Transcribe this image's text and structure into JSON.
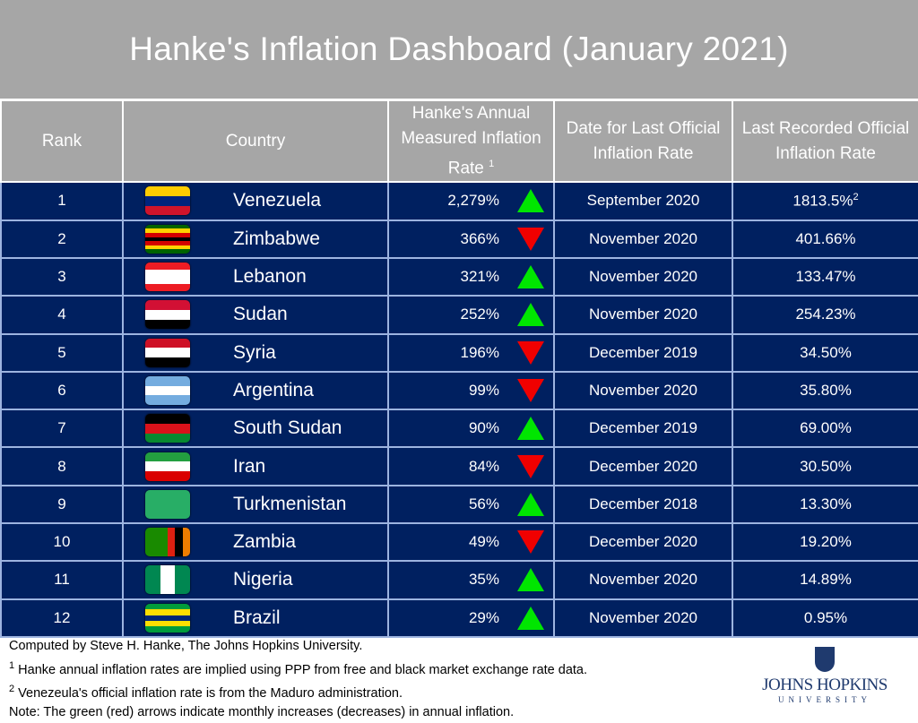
{
  "title": "Hanke's Inflation Dashboard (January 2021)",
  "headers": {
    "rank": "Rank",
    "country": "Country",
    "hanke_a": "Hanke's Annual",
    "hanke_b": "Measured Inflation",
    "hanke_c": "Rate",
    "hanke_sup": "1",
    "date_a": "Date for Last Official",
    "date_b": "Inflation Rate",
    "official_a": "Last Recorded Official",
    "official_b": "Inflation Rate"
  },
  "colors": {
    "title_bg": "#a6a6a6",
    "row_bg": "#002060",
    "up_arrow": "#00e600",
    "down_arrow": "#f00000"
  },
  "rows": [
    {
      "rank": "1",
      "country": "Venezuela",
      "hanke": "2,279%",
      "trend": "up",
      "date": "September 2020",
      "official": "1813.5%",
      "official_sup": "2",
      "flag": {
        "dir": "h",
        "colors": [
          "#ffcc00",
          "#00247d",
          "#cf142b"
        ]
      }
    },
    {
      "rank": "2",
      "country": "Zimbabwe",
      "hanke": "366%",
      "trend": "down",
      "date": "November 2020",
      "official": "401.66%",
      "flag": {
        "dir": "h",
        "colors": [
          "#006400",
          "#ffd200",
          "#d40000",
          "#000000",
          "#d40000",
          "#ffd200",
          "#006400"
        ]
      }
    },
    {
      "rank": "3",
      "country": "Lebanon",
      "hanke": "321%",
      "trend": "up",
      "date": "November 2020",
      "official": "133.47%",
      "flag": {
        "dir": "h",
        "colors": [
          "#ed1c24",
          "#ffffff",
          "#ffffff",
          "#ed1c24"
        ]
      }
    },
    {
      "rank": "4",
      "country": "Sudan",
      "hanke": "252%",
      "trend": "up",
      "date": "November 2020",
      "official": "254.23%",
      "flag": {
        "dir": "h",
        "colors": [
          "#d21034",
          "#ffffff",
          "#000000"
        ]
      }
    },
    {
      "rank": "5",
      "country": "Syria",
      "hanke": "196%",
      "trend": "down",
      "date": "December 2019",
      "official": "34.50%",
      "flag": {
        "dir": "h",
        "colors": [
          "#ce1126",
          "#ffffff",
          "#000000"
        ]
      }
    },
    {
      "rank": "6",
      "country": "Argentina",
      "hanke": "99%",
      "trend": "down",
      "date": "November 2020",
      "official": "35.80%",
      "flag": {
        "dir": "h",
        "colors": [
          "#74acdf",
          "#ffffff",
          "#74acdf"
        ]
      }
    },
    {
      "rank": "7",
      "country": "South Sudan",
      "hanke": "90%",
      "trend": "up",
      "date": "December 2019",
      "official": "69.00%",
      "flag": {
        "dir": "h",
        "colors": [
          "#000000",
          "#da121a",
          "#078930"
        ]
      }
    },
    {
      "rank": "8",
      "country": "Iran",
      "hanke": "84%",
      "trend": "down",
      "date": "December 2020",
      "official": "30.50%",
      "flag": {
        "dir": "h",
        "colors": [
          "#239f40",
          "#ffffff",
          "#da0000"
        ]
      }
    },
    {
      "rank": "9",
      "country": "Turkmenistan",
      "hanke": "56%",
      "trend": "up",
      "date": "December 2018",
      "official": "13.30%",
      "flag": {
        "dir": "h",
        "colors": [
          "#28ae66"
        ]
      }
    },
    {
      "rank": "10",
      "country": "Zambia",
      "hanke": "49%",
      "trend": "down",
      "date": "December 2020",
      "official": "19.20%",
      "flag": {
        "dir": "v",
        "colors": [
          "#198a00",
          "#198a00",
          "#198a00",
          "#de2010",
          "#000000",
          "#ef7d00"
        ]
      }
    },
    {
      "rank": "11",
      "country": "Nigeria",
      "hanke": "35%",
      "trend": "up",
      "date": "November 2020",
      "official": "14.89%",
      "flag": {
        "dir": "v",
        "colors": [
          "#008751",
          "#ffffff",
          "#008751"
        ]
      }
    },
    {
      "rank": "12",
      "country": "Brazil",
      "hanke": "29%",
      "trend": "up",
      "date": "November 2020",
      "official": "0.95%",
      "flag": {
        "dir": "h",
        "colors": [
          "#009c3b",
          "#ffdf00",
          "#002776",
          "#ffdf00",
          "#009c3b"
        ]
      }
    }
  ],
  "notes": {
    "line1": "Computed by Steve H. Hanke, The Johns Hopkins University.",
    "line2_sup": "1",
    "line2": " Hanke annual inflation rates are implied using PPP from free and black market exchange rate data.",
    "line3_sup": "2",
    "line3": " Venezeula's official inflation rate is from the Maduro administration.",
    "line4": "Note: The green (red) arrows indicate monthly increases (decreases) in annual inflation."
  },
  "logo": {
    "name": "JOHNS HOPKINS",
    "sub": "UNIVERSITY"
  }
}
